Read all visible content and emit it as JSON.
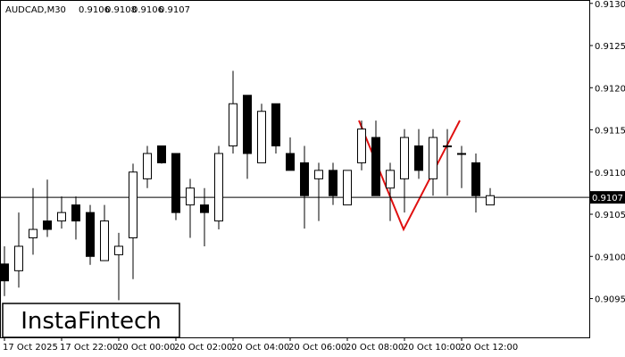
{
  "chart_data": {
    "type": "candlestick",
    "symbol": "AUDCAD,M30",
    "header_ohlc": [
      0.9106,
      0.9108,
      0.9106,
      0.9107
    ],
    "categories": [
      "17 Oct 2025",
      null,
      null,
      null,
      "17 Oct 22:00",
      null,
      null,
      null,
      "20 Oct 00:00",
      null,
      null,
      null,
      "20 Oct 02:00",
      null,
      null,
      null,
      "20 Oct 04:00",
      null,
      null,
      null,
      "20 Oct 06:00",
      null,
      null,
      null,
      "20 Oct 08:00",
      null,
      null,
      null,
      "20 Oct 10:00",
      null,
      null,
      null,
      "20 Oct 12:00",
      null,
      null
    ],
    "open": [
      0.90991,
      0.90983,
      0.91022,
      0.91042,
      0.91042,
      0.91061,
      0.91052,
      0.90995,
      0.91002,
      0.91022,
      0.91092,
      0.91131,
      0.91122,
      0.91061,
      0.91061,
      0.91042,
      0.91131,
      0.91191,
      0.91111,
      0.91181,
      0.91122,
      0.91111,
      0.91092,
      0.91102,
      0.91061,
      0.91111,
      0.91141,
      0.91081,
      0.91092,
      0.91131,
      0.91092,
      0.91131,
      0.91122,
      0.91111,
      0.91061
    ],
    "high": [
      0.91012,
      0.91052,
      0.91081,
      0.91091,
      0.91071,
      0.91071,
      0.91061,
      0.91061,
      0.91028,
      0.9111,
      0.91131,
      0.91131,
      0.91122,
      0.91092,
      0.91081,
      0.91131,
      0.9122,
      0.91191,
      0.91181,
      0.91181,
      0.91141,
      0.91131,
      0.91111,
      0.91111,
      0.91102,
      0.91161,
      0.91161,
      0.91111,
      0.91151,
      0.91151,
      0.91151,
      0.91151,
      0.91131,
      0.91122,
      0.91081
    ],
    "low": [
      0.90953,
      0.90963,
      0.91002,
      0.91023,
      0.91033,
      0.9102,
      0.9099,
      0.90995,
      0.90948,
      0.90973,
      0.91081,
      0.9111,
      0.91043,
      0.91022,
      0.91012,
      0.91032,
      0.91122,
      0.91092,
      0.91111,
      0.91122,
      0.91102,
      0.91033,
      0.91042,
      0.91061,
      0.91061,
      0.91102,
      0.91072,
      0.91042,
      0.91052,
      0.91092,
      0.91072,
      0.91072,
      0.91081,
      0.91052,
      0.91061
    ],
    "close": [
      0.90971,
      0.91012,
      0.91032,
      0.91032,
      0.91052,
      0.91042,
      0.91,
      0.91042,
      0.91012,
      0.911,
      0.91122,
      0.91111,
      0.91052,
      0.91081,
      0.91052,
      0.91122,
      0.91181,
      0.91122,
      0.91172,
      0.91131,
      0.91102,
      0.91072,
      0.91102,
      0.91072,
      0.91102,
      0.91151,
      0.91072,
      0.91102,
      0.91141,
      0.91102,
      0.91141,
      0.91131,
      0.91122,
      0.91072,
      0.91072
    ],
    "current_price": 0.9107,
    "ylim": [
      0.90904,
      0.91304
    ],
    "yticks": [
      {
        "value": 0.913,
        "label": "0.9130"
      },
      0.9125,
      {
        "value": 0.912,
        "label": "0.9120"
      },
      0.9115,
      {
        "value": 0.911,
        "label": "0.9110"
      },
      0.9105,
      {
        "value": 0.91,
        "label": "0.9100"
      },
      0.9095
    ],
    "bull_color": "#ffffff",
    "bear_color": "#000000"
  },
  "logo": "InstaFintech"
}
